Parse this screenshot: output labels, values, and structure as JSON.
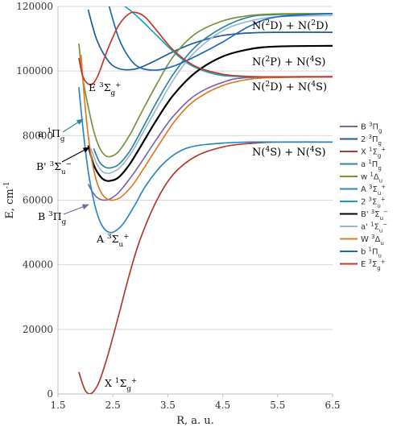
{
  "chart_data": {
    "type": "line",
    "xlabel": "R, a. u.",
    "ylabel": "E, cm",
    "ylabel_sup": "-1",
    "xlim": [
      1.5,
      6.5
    ],
    "ylim": [
      0,
      120000
    ],
    "xticks": [
      "1.5",
      "2.5",
      "3.5",
      "4.5",
      "5.5",
      "6.5"
    ],
    "yticks": [
      "0",
      "20000",
      "40000",
      "60000",
      "80000",
      "100000",
      "120000"
    ],
    "grid": "horizontal",
    "legend_position": "right",
    "series": [
      {
        "name": "B 3Πg",
        "legend": [
          {
            "t": "B "
          },
          {
            "t": "3",
            "s": "sup"
          },
          {
            "t": "Π"
          },
          {
            "t": "g",
            "s": "sub"
          }
        ],
        "color": "#8064a2",
        "x": [
          2.05,
          2.15,
          2.25,
          2.35,
          2.45,
          2.6,
          2.8,
          3.0,
          3.3,
          3.6,
          4.0,
          4.5,
          5.0,
          6.5
        ],
        "y": [
          65000,
          62000,
          60400,
          60000,
          60400,
          62300,
          66500,
          71300,
          79000,
          86000,
          92500,
          96500,
          98000,
          98300
        ]
      },
      {
        "name": "2 3Πg",
        "legend": [
          {
            "t": "2 "
          },
          {
            "t": "3",
            "s": "sup"
          },
          {
            "t": "Π"
          },
          {
            "t": "g",
            "s": "sub"
          }
        ],
        "color": "#1f5c99",
        "x": [
          2.05,
          2.2,
          2.4,
          2.6,
          2.9,
          3.2,
          3.6,
          4.0,
          4.5,
          5.0,
          5.5,
          6.5
        ],
        "y": [
          119000,
          110000,
          103500,
          100800,
          100600,
          102600,
          106000,
          108800,
          111000,
          111800,
          112000,
          112000
        ]
      },
      {
        "name": "X 1Σg+",
        "legend": [
          {
            "t": "X "
          },
          {
            "t": "1",
            "s": "sup"
          },
          {
            "t": "Σ"
          },
          {
            "t": "g",
            "s": "sub"
          },
          {
            "t": "+",
            "s": "sup"
          }
        ],
        "color": "#b03a2e",
        "x": [
          1.88,
          1.95,
          2.0,
          2.07,
          2.15,
          2.25,
          2.4,
          2.6,
          2.8,
          3.0,
          3.3,
          3.6,
          4.0,
          4.5,
          5.0,
          5.5,
          6.5
        ],
        "y": [
          6800,
          3000,
          1000,
          0,
          800,
          3800,
          11500,
          24000,
          37000,
          48000,
          60000,
          68000,
          73500,
          76500,
          77600,
          78000,
          78000
        ]
      },
      {
        "name": "a 1Πg",
        "legend": [
          {
            "t": "a "
          },
          {
            "t": "1",
            "s": "sup"
          },
          {
            "t": "Π"
          },
          {
            "t": "g",
            "s": "sub"
          }
        ],
        "color": "#31859c",
        "x": [
          2.15,
          2.25,
          2.35,
          2.45,
          2.6,
          2.8,
          3.0,
          3.3,
          3.6,
          4.0,
          4.5,
          5.0,
          5.5,
          6.5
        ],
        "y": [
          76000,
          72000,
          70300,
          70000,
          71000,
          75000,
          81000,
          90500,
          99000,
          107500,
          113500,
          116800,
          117500,
          117800
        ]
      },
      {
        "name": "w 1Δu",
        "legend": [
          {
            "t": "w "
          },
          {
            "t": "1",
            "s": "sup"
          },
          {
            "t": "Δ"
          },
          {
            "t": "u",
            "s": "sub"
          }
        ],
        "color": "#77933c",
        "x": [
          1.88,
          1.95,
          2.05,
          2.15,
          2.25,
          2.35,
          2.45,
          2.6,
          2.8,
          3.0,
          3.3,
          3.6,
          4.0,
          4.5,
          5.0,
          5.5,
          6.5
        ],
        "y": [
          108500,
          98000,
          89000,
          81500,
          76500,
          74000,
          73500,
          75000,
          80000,
          86500,
          96000,
          104500,
          111500,
          115500,
          117200,
          117700,
          117800
        ]
      },
      {
        "name": "A 3Σu+",
        "legend": [
          {
            "t": "A "
          },
          {
            "t": "3",
            "s": "sup"
          },
          {
            "t": "Σ"
          },
          {
            "t": "u",
            "s": "sub"
          },
          {
            "t": "+",
            "s": "sup"
          }
        ],
        "color": "#2e86c1",
        "x": [
          1.88,
          1.95,
          2.05,
          2.15,
          2.25,
          2.35,
          2.45,
          2.55,
          2.7,
          2.9,
          3.1,
          3.4,
          3.7,
          4.0,
          4.5,
          5.0,
          5.5,
          6.5
        ],
        "y": [
          95000,
          83000,
          69000,
          60000,
          54000,
          51000,
          50000,
          50500,
          53000,
          58500,
          64500,
          71000,
          75000,
          76800,
          77700,
          78000,
          78000,
          78000
        ]
      },
      {
        "name": "2 3Σu+",
        "legend": [
          {
            "t": "2 "
          },
          {
            "t": "3",
            "s": "sup"
          },
          {
            "t": "Σ"
          },
          {
            "t": "u",
            "s": "sub"
          },
          {
            "t": "+",
            "s": "sup"
          }
        ],
        "color": "#17a2b8",
        "x": [
          2.55,
          2.8,
          3.0,
          3.3,
          3.6,
          3.9,
          4.2,
          4.5,
          5.0,
          5.5,
          6.5
        ],
        "y": [
          122000,
          119000,
          116000,
          111000,
          106000,
          102000,
          99800,
          98600,
          98200,
          98200,
          98200
        ]
      },
      {
        "name": "B' 3Σu-",
        "legend": [
          {
            "t": "B' "
          },
          {
            "t": "3",
            "s": "sup"
          },
          {
            "t": "Σ"
          },
          {
            "t": "u",
            "s": "sub"
          },
          {
            "t": "−",
            "s": "sup"
          }
        ],
        "color": "#000000",
        "x": [
          2.05,
          2.15,
          2.25,
          2.35,
          2.45,
          2.6,
          2.8,
          3.0,
          3.3,
          3.6,
          4.0,
          4.5,
          5.0,
          5.5,
          6.5
        ],
        "y": [
          77000,
          71000,
          67800,
          66200,
          66000,
          67000,
          71000,
          76500,
          85000,
          92500,
          99500,
          104500,
          106800,
          107600,
          107800
        ]
      },
      {
        "name": "a' 1Σu-",
        "legend": [
          {
            "t": "a' "
          },
          {
            "t": "1",
            "s": "sup"
          },
          {
            "t": "Σ"
          },
          {
            "t": "u",
            "s": "sub"
          },
          {
            "t": "−",
            "s": "sup"
          }
        ],
        "color": "#9bb7d4",
        "x": [
          2.1,
          2.2,
          2.3,
          2.4,
          2.5,
          2.65,
          2.85,
          3.05,
          3.35,
          3.65,
          4.0,
          4.5,
          5.0,
          5.5,
          6.5
        ],
        "y": [
          76000,
          71500,
          69000,
          68300,
          68700,
          70500,
          75000,
          81000,
          90000,
          98500,
          106000,
          112500,
          115500,
          116800,
          117200
        ]
      },
      {
        "name": "W 3Δu",
        "legend": [
          {
            "t": "W "
          },
          {
            "t": "3",
            "s": "sup"
          },
          {
            "t": "Δ"
          },
          {
            "t": "u",
            "s": "sub"
          }
        ],
        "color": "#e07b24",
        "x": [
          1.92,
          2.0,
          2.1,
          2.2,
          2.3,
          2.4,
          2.5,
          2.65,
          2.85,
          3.05,
          3.35,
          3.65,
          4.0,
          4.5,
          5.0,
          5.5,
          6.5
        ],
        "y": [
          105000,
          88000,
          74000,
          66000,
          62000,
          60300,
          60000,
          61000,
          64500,
          69500,
          77500,
          85000,
          91000,
          95500,
          97500,
          98000,
          98200
        ]
      },
      {
        "name": "b 1Πu",
        "legend": [
          {
            "t": "b "
          },
          {
            "t": "1",
            "s": "sup"
          },
          {
            "t": "Π"
          },
          {
            "t": "u",
            "s": "sub"
          }
        ],
        "color": "#1a6bb5",
        "x": [
          2.4,
          2.6,
          2.8,
          3.0,
          3.3,
          3.6,
          4.0,
          4.5,
          5.0,
          5.5,
          6.5
        ],
        "y": [
          122000,
          110500,
          104000,
          101000,
          100300,
          101500,
          104500,
          109000,
          114000,
          116800,
          117800
        ]
      },
      {
        "name": "E 3Σg+",
        "legend": [
          {
            "t": "E "
          },
          {
            "t": "3",
            "s": "sup"
          },
          {
            "t": "Σ"
          },
          {
            "t": "g",
            "s": "sub"
          },
          {
            "t": "+",
            "s": "sup"
          }
        ],
        "color": "#c0392b",
        "x": [
          1.88,
          1.95,
          2.05,
          2.15,
          2.25,
          2.4,
          2.6,
          2.8,
          2.95,
          3.1,
          3.3,
          3.6,
          4.0,
          4.5,
          5.0,
          5.5,
          6.5
        ],
        "y": [
          104000,
          98500,
          96000,
          96300,
          99500,
          106500,
          114000,
          117800,
          118000,
          116500,
          112500,
          106500,
          101500,
          99000,
          98300,
          98200,
          98200
        ]
      }
    ],
    "annotations": [
      {
        "id": "E",
        "parts": [
          {
            "t": "E "
          },
          {
            "t": "3",
            "s": "sup"
          },
          {
            "t": "Σ"
          },
          {
            "t": "g",
            "s": "sub"
          },
          {
            "t": "+",
            "s": "sup"
          }
        ]
      },
      {
        "id": "a",
        "parts": [
          {
            "t": "a "
          },
          {
            "t": "1",
            "s": "sup"
          },
          {
            "t": "Π"
          },
          {
            "t": "g",
            "s": "sub"
          }
        ]
      },
      {
        "id": "Bp",
        "parts": [
          {
            "t": "B' "
          },
          {
            "t": "3",
            "s": "sup"
          },
          {
            "t": "Σ"
          },
          {
            "t": "u",
            "s": "sub"
          },
          {
            "t": "−",
            "s": "sup"
          }
        ]
      },
      {
        "id": "B",
        "parts": [
          {
            "t": "B "
          },
          {
            "t": "3",
            "s": "sup"
          },
          {
            "t": "Π"
          },
          {
            "t": "g",
            "s": "sub"
          }
        ]
      },
      {
        "id": "A",
        "parts": [
          {
            "t": "A "
          },
          {
            "t": "3",
            "s": "sup"
          },
          {
            "t": "Σ"
          },
          {
            "t": "u",
            "s": "sub"
          },
          {
            "t": "+",
            "s": "sup"
          }
        ]
      },
      {
        "id": "X",
        "parts": [
          {
            "t": "X "
          },
          {
            "t": "1",
            "s": "sup"
          },
          {
            "t": "Σ"
          },
          {
            "t": "g",
            "s": "sub"
          },
          {
            "t": "+",
            "s": "sup"
          }
        ]
      }
    ],
    "asymptotes": [
      {
        "id": "dd",
        "parts": [
          {
            "t": "N("
          },
          {
            "t": "2",
            "s": "sup"
          },
          {
            "t": "D) + N("
          },
          {
            "t": "2",
            "s": "sup"
          },
          {
            "t": "D)"
          }
        ]
      },
      {
        "id": "ps",
        "parts": [
          {
            "t": "N("
          },
          {
            "t": "2",
            "s": "sup"
          },
          {
            "t": "P) + N("
          },
          {
            "t": "4",
            "s": "sup"
          },
          {
            "t": "S)"
          }
        ]
      },
      {
        "id": "ds",
        "parts": [
          {
            "t": "N("
          },
          {
            "t": "2",
            "s": "sup"
          },
          {
            "t": "D) + N("
          },
          {
            "t": "4",
            "s": "sup"
          },
          {
            "t": "S)"
          }
        ]
      },
      {
        "id": "ss",
        "parts": [
          {
            "t": "N("
          },
          {
            "t": "4",
            "s": "sup"
          },
          {
            "t": "S) + N("
          },
          {
            "t": "4",
            "s": "sup"
          },
          {
            "t": "S)"
          }
        ]
      }
    ]
  }
}
